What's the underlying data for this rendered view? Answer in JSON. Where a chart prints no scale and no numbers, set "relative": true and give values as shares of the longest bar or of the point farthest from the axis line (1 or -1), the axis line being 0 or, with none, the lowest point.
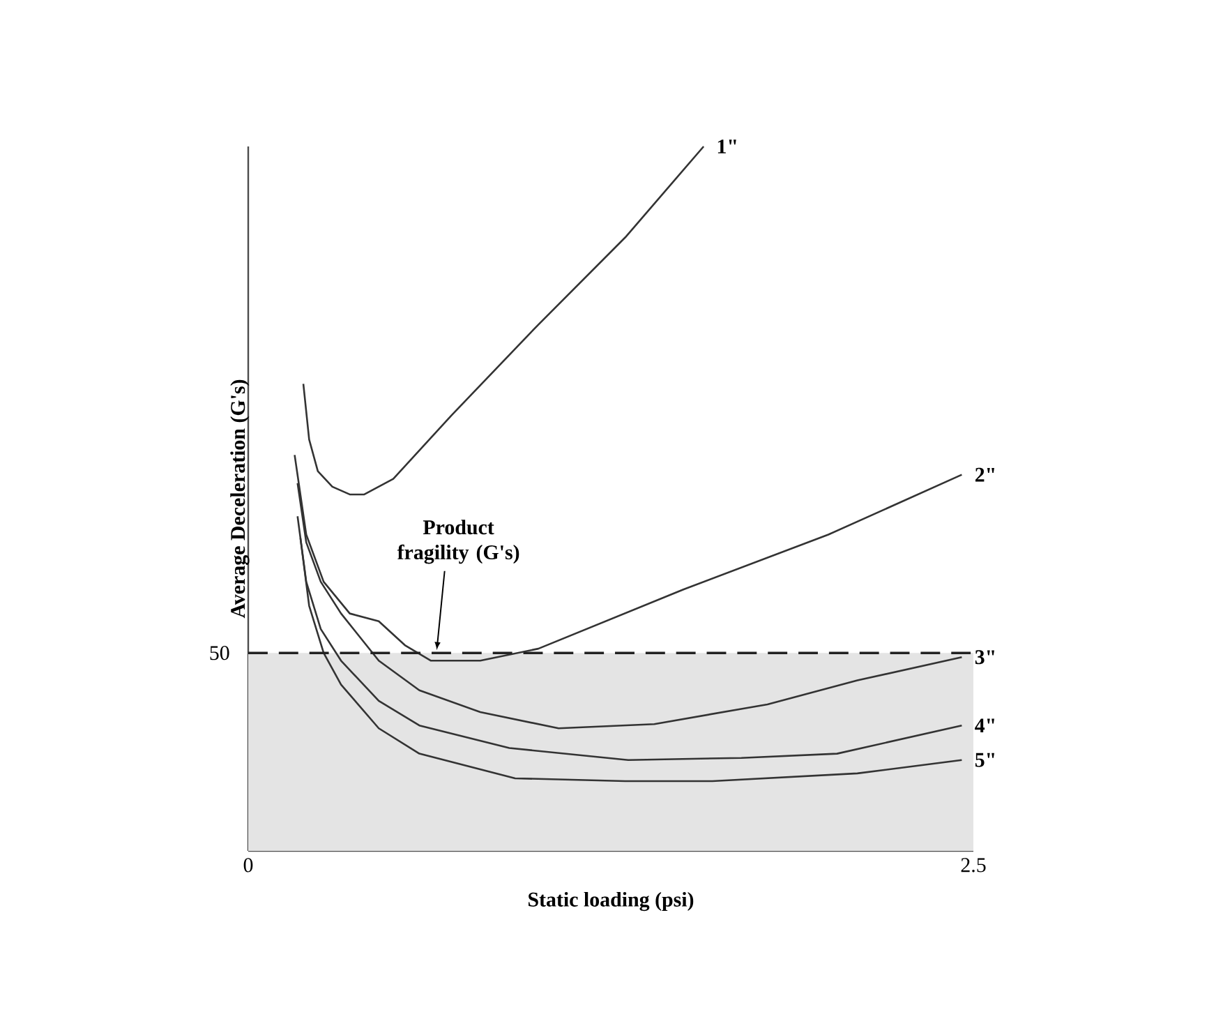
{
  "chart_data": {
    "type": "line",
    "relative": true,
    "xlabel": "Static loading (psi)",
    "ylabel": "Average Deceleration (G's)",
    "xlim": [
      0,
      2.5
    ],
    "xticks": [
      0,
      2.5
    ],
    "grid": false,
    "marker": "none",
    "line_style": "solid",
    "series": [
      {
        "name": "1\"",
        "color": "#333333",
        "x": [
          0.19,
          0.21,
          0.24,
          0.29,
          0.35,
          0.4,
          0.5,
          0.7,
          1.0,
          1.3,
          1.57
        ],
        "values": [
          0.663,
          0.584,
          0.539,
          0.517,
          0.506,
          0.506,
          0.528,
          0.618,
          0.747,
          0.871,
          1
        ]
      },
      {
        "name": "2\"",
        "color": "#333333",
        "x": [
          0.16,
          0.2,
          0.26,
          0.35,
          0.45,
          0.54,
          0.63,
          0.8,
          1.0,
          1.5,
          2.0,
          2.46
        ],
        "values": [
          0.562,
          0.449,
          0.382,
          0.337,
          0.326,
          0.292,
          0.27,
          0.27,
          0.287,
          0.371,
          0.449,
          0.534
        ]
      },
      {
        "name": "3\"",
        "color": "#333333",
        "x": [
          0.17,
          0.2,
          0.25,
          0.32,
          0.45,
          0.59,
          0.8,
          1.07,
          1.4,
          1.79,
          2.1,
          2.46
        ],
        "values": [
          0.522,
          0.438,
          0.382,
          0.337,
          0.27,
          0.228,
          0.197,
          0.174,
          0.18,
          0.208,
          0.242,
          0.275
        ]
      },
      {
        "name": "4\"",
        "color": "#333333",
        "x": [
          0.17,
          0.2,
          0.25,
          0.32,
          0.45,
          0.59,
          0.9,
          1.31,
          1.7,
          2.03,
          2.46
        ],
        "values": [
          0.475,
          0.382,
          0.315,
          0.27,
          0.213,
          0.178,
          0.146,
          0.129,
          0.132,
          0.138,
          0.178
        ]
      },
      {
        "name": "5\"",
        "color": "#333333",
        "x": [
          0.18,
          0.21,
          0.26,
          0.32,
          0.45,
          0.59,
          0.92,
          1.3,
          1.6,
          2.1,
          2.46
        ],
        "values": [
          0.444,
          0.348,
          0.281,
          0.236,
          0.174,
          0.138,
          0.103,
          0.099,
          0.099,
          0.11,
          0.129
        ]
      }
    ],
    "ref_lines": [
      {
        "axis": "y",
        "value": 0.281,
        "label": "Product fragility (G's)",
        "line_style": "dashed",
        "color": "#222222"
      }
    ],
    "bands": [
      {
        "axis": "y",
        "from": 0,
        "to": 0.281,
        "color": "#e4e4e4"
      }
    ],
    "annotations": [
      {
        "text": "50",
        "x": 0,
        "y": 0.281
      }
    ]
  }
}
